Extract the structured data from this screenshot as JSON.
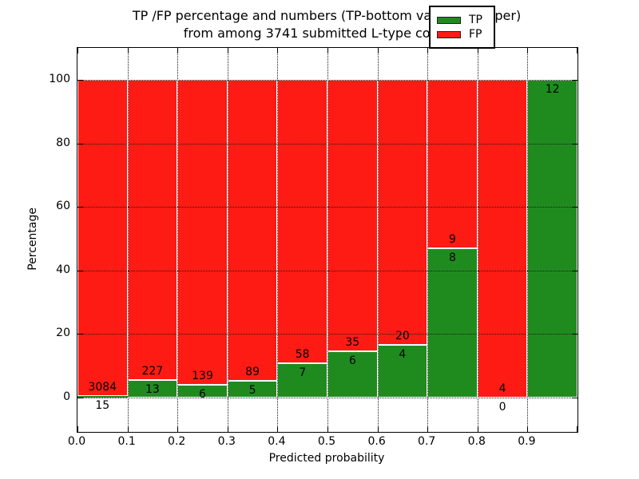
{
  "title": {
    "line1": "TP /FP percentage and numbers (TP-bottom value, FP-upper)",
    "line2": "from among 3741 submitted L-type contacts"
  },
  "axes": {
    "ylabel": "Percentage",
    "xlabel": "Predicted probability",
    "yticks": [
      0,
      20,
      40,
      60,
      80,
      100
    ],
    "xticks": [
      "0.0",
      "0.1",
      "0.2",
      "0.3",
      "0.4",
      "0.5",
      "0.6",
      "0.7",
      "0.8",
      "0.9"
    ],
    "grid": "dotted"
  },
  "legend": {
    "position": "upper right",
    "items": [
      {
        "label": "TP",
        "color": "#1f8b1f"
      },
      {
        "label": "FP",
        "color": "#fe1b13"
      }
    ]
  },
  "colors": {
    "tp": "#1f8b1f",
    "fp": "#fe1b13",
    "grid": "#1a1a1a",
    "text": "#000000"
  },
  "chart_data": {
    "type": "bar",
    "stacked": true,
    "units": "percent of bin total",
    "total_contacts": 3741,
    "bins": [
      "0.0-0.1",
      "0.1-0.2",
      "0.2-0.3",
      "0.3-0.4",
      "0.4-0.5",
      "0.5-0.6",
      "0.6-0.7",
      "0.7-0.8",
      "0.8-0.9",
      "0.9-1.0"
    ],
    "series": [
      {
        "name": "TP",
        "counts": [
          15,
          13,
          6,
          5,
          7,
          6,
          4,
          8,
          0,
          12
        ]
      },
      {
        "name": "FP",
        "counts": [
          3084,
          227,
          139,
          89,
          58,
          35,
          20,
          9,
          4,
          0
        ]
      }
    ],
    "tp_percent": [
      0.48,
      5.42,
      4.14,
      5.32,
      10.77,
      14.63,
      16.67,
      47.06,
      0.0,
      100.0
    ],
    "tp_labels": [
      "15",
      "13",
      "6",
      "5",
      "7",
      "6",
      "4",
      "8",
      "0",
      "12"
    ],
    "fp_labels": [
      "3084",
      "227",
      "139",
      "89",
      "58",
      "35",
      "20",
      "9",
      "4",
      ""
    ],
    "title": "TP /FP percentage and numbers (TP-bottom value, FP-upper) from among 3741 submitted L-type contacts",
    "xlabel": "Predicted probability",
    "ylabel": "Percentage",
    "ylim": [
      -11,
      110
    ],
    "xlim": [
      0.0,
      1.0
    ]
  }
}
